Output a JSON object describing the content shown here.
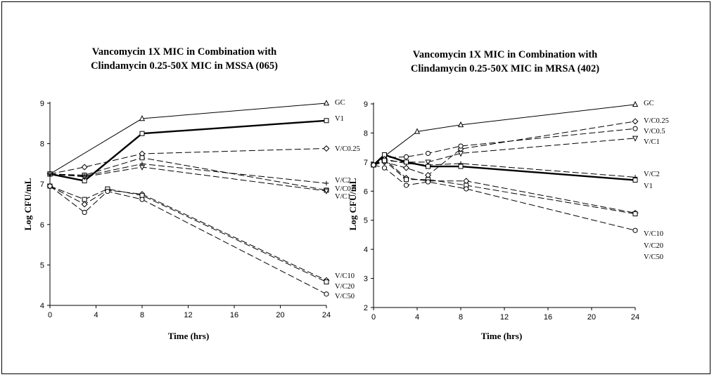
{
  "chart_data": [
    {
      "type": "line",
      "title_line1": "Vancomycin 1X MIC in Combination with",
      "title_line2": "Clindamycin 0.25-50X MIC in MSSA (065)",
      "xlabel": "Time (hrs)",
      "ylabel": "Log CFU/mL",
      "xlim": [
        0,
        24
      ],
      "ylim": [
        4,
        9
      ],
      "xticks": [
        0,
        4,
        8,
        12,
        16,
        20,
        24
      ],
      "yticks": [
        4,
        5,
        6,
        7,
        8,
        9
      ],
      "grid": false,
      "series": [
        {
          "name": "GC",
          "marker": "triangle",
          "dash": "solid",
          "x": [
            0,
            8,
            24
          ],
          "y": [
            7.25,
            8.62,
            9.0
          ]
        },
        {
          "name": "V1",
          "marker": "square",
          "dash": "bold",
          "x": [
            0,
            3,
            8,
            24
          ],
          "y": [
            7.25,
            7.08,
            8.25,
            8.57
          ]
        },
        {
          "name": "V/C0.25",
          "marker": "diamond",
          "dash": "dashed",
          "x": [
            0,
            3,
            8,
            24
          ],
          "y": [
            7.25,
            7.42,
            7.75,
            7.88
          ]
        },
        {
          "name": "V/C0.5",
          "marker": "square",
          "dash": "dashed",
          "x": [
            0,
            3,
            8,
            24
          ],
          "y": [
            7.25,
            7.22,
            7.65,
            6.85
          ]
        },
        {
          "name": "V/C1",
          "marker": "triangle-down",
          "dash": "dashed",
          "x": [
            0,
            3,
            8,
            24
          ],
          "y": [
            7.25,
            7.18,
            7.42,
            6.83
          ]
        },
        {
          "name": "V/C2",
          "marker": "plus",
          "dash": "dashed",
          "x": [
            0,
            3,
            8,
            24
          ],
          "y": [
            7.25,
            7.2,
            7.5,
            7.02
          ]
        },
        {
          "name": "V/C10",
          "marker": "diamond",
          "dash": "dashed",
          "x": [
            0,
            3,
            5,
            8,
            24
          ],
          "y": [
            6.95,
            6.5,
            6.85,
            6.75,
            4.62
          ]
        },
        {
          "name": "V/C20",
          "marker": "square",
          "dash": "dashed",
          "x": [
            0,
            3,
            5,
            8,
            24
          ],
          "y": [
            6.95,
            6.62,
            6.88,
            6.72,
            4.58
          ]
        },
        {
          "name": "V/C50",
          "marker": "circle",
          "dash": "dashed",
          "x": [
            0,
            3,
            5,
            8,
            24
          ],
          "y": [
            6.95,
            6.3,
            6.82,
            6.62,
            4.28
          ]
        }
      ]
    },
    {
      "type": "line",
      "title_line1": "Vancomycin 1X MIC in Combination with",
      "title_line2": "Clindamycin 0.25-50X MIC in MRSA (402)",
      "xlabel": "Time (hrs)",
      "ylabel": "Log CFU/mL",
      "xlim": [
        0,
        24
      ],
      "ylim": [
        2,
        9
      ],
      "xticks": [
        0,
        4,
        8,
        12,
        16,
        20,
        24
      ],
      "yticks": [
        2,
        3,
        4,
        5,
        6,
        7,
        8,
        9
      ],
      "grid": false,
      "series": [
        {
          "name": "GC",
          "marker": "triangle",
          "dash": "solid",
          "x": [
            0,
            1,
            4,
            8,
            24
          ],
          "y": [
            6.9,
            7.2,
            8.05,
            8.28,
            8.98
          ]
        },
        {
          "name": "V/C0.25",
          "marker": "diamond",
          "dash": "dashed",
          "x": [
            0,
            1,
            3,
            5,
            8,
            24
          ],
          "y": [
            6.9,
            7.0,
            6.8,
            6.55,
            7.45,
            8.4
          ]
        },
        {
          "name": "V/C0.5",
          "marker": "circle",
          "dash": "dashed",
          "x": [
            0,
            1,
            3,
            5,
            8,
            24
          ],
          "y": [
            6.9,
            7.15,
            7.18,
            7.3,
            7.55,
            8.15
          ]
        },
        {
          "name": "V/C1",
          "marker": "triangle-down",
          "dash": "dashed",
          "x": [
            0,
            1,
            3,
            5,
            8,
            24
          ],
          "y": [
            6.9,
            7.05,
            7.0,
            7.0,
            7.3,
            7.82
          ]
        },
        {
          "name": "V/C2",
          "marker": "plus",
          "dash": "dashed",
          "x": [
            0,
            1,
            3,
            5,
            8,
            24
          ],
          "y": [
            6.9,
            7.1,
            6.95,
            6.9,
            6.95,
            6.48
          ]
        },
        {
          "name": "V1",
          "marker": "square",
          "dash": "bold",
          "x": [
            0,
            1,
            3,
            5,
            8,
            24
          ],
          "y": [
            6.9,
            7.25,
            7.0,
            6.85,
            6.85,
            6.38
          ]
        },
        {
          "name": "V/C10",
          "marker": "diamond",
          "dash": "dashed",
          "x": [
            0,
            1,
            3,
            5,
            8.5,
            24
          ],
          "y": [
            6.9,
            7.1,
            6.45,
            6.35,
            6.35,
            5.25
          ]
        },
        {
          "name": "V/C20",
          "marker": "square",
          "dash": "dashed",
          "x": [
            0,
            1,
            3,
            5,
            8.5,
            24
          ],
          "y": [
            6.9,
            7.05,
            6.4,
            6.4,
            6.2,
            5.22
          ]
        },
        {
          "name": "V/C50",
          "marker": "circle",
          "dash": "dashed",
          "x": [
            0,
            1,
            3,
            5,
            8.5,
            24
          ],
          "y": [
            6.9,
            6.8,
            6.2,
            6.32,
            6.08,
            4.65
          ]
        }
      ]
    }
  ]
}
